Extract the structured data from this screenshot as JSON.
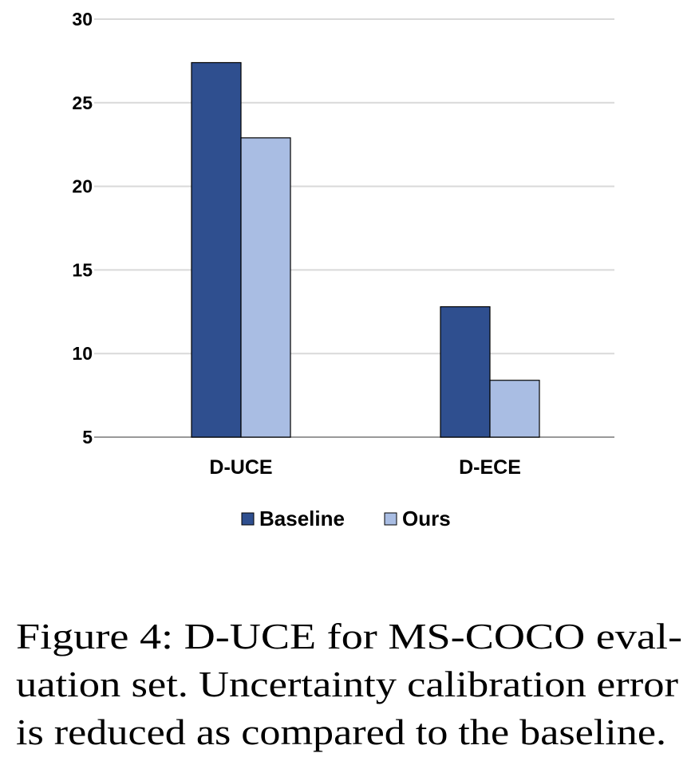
{
  "chart_data": {
    "type": "bar",
    "categories": [
      "D-UCE",
      "D-ECE"
    ],
    "series": [
      {
        "name": "Baseline",
        "color": "#2f4f8f",
        "values": [
          27.4,
          12.8
        ]
      },
      {
        "name": "Ours",
        "color": "#a9bde3",
        "values": [
          22.9,
          8.4
        ]
      }
    ],
    "ylim": [
      5,
      30
    ],
    "yticks": [
      5,
      10,
      15,
      20,
      25,
      30
    ],
    "grid": true,
    "legend": "bottom",
    "caption": [
      "Figure 4: D-UCE for MS-COCO eval-",
      "uation set. Uncertainty calibration error",
      "is reduced as compared to the baseline."
    ]
  }
}
